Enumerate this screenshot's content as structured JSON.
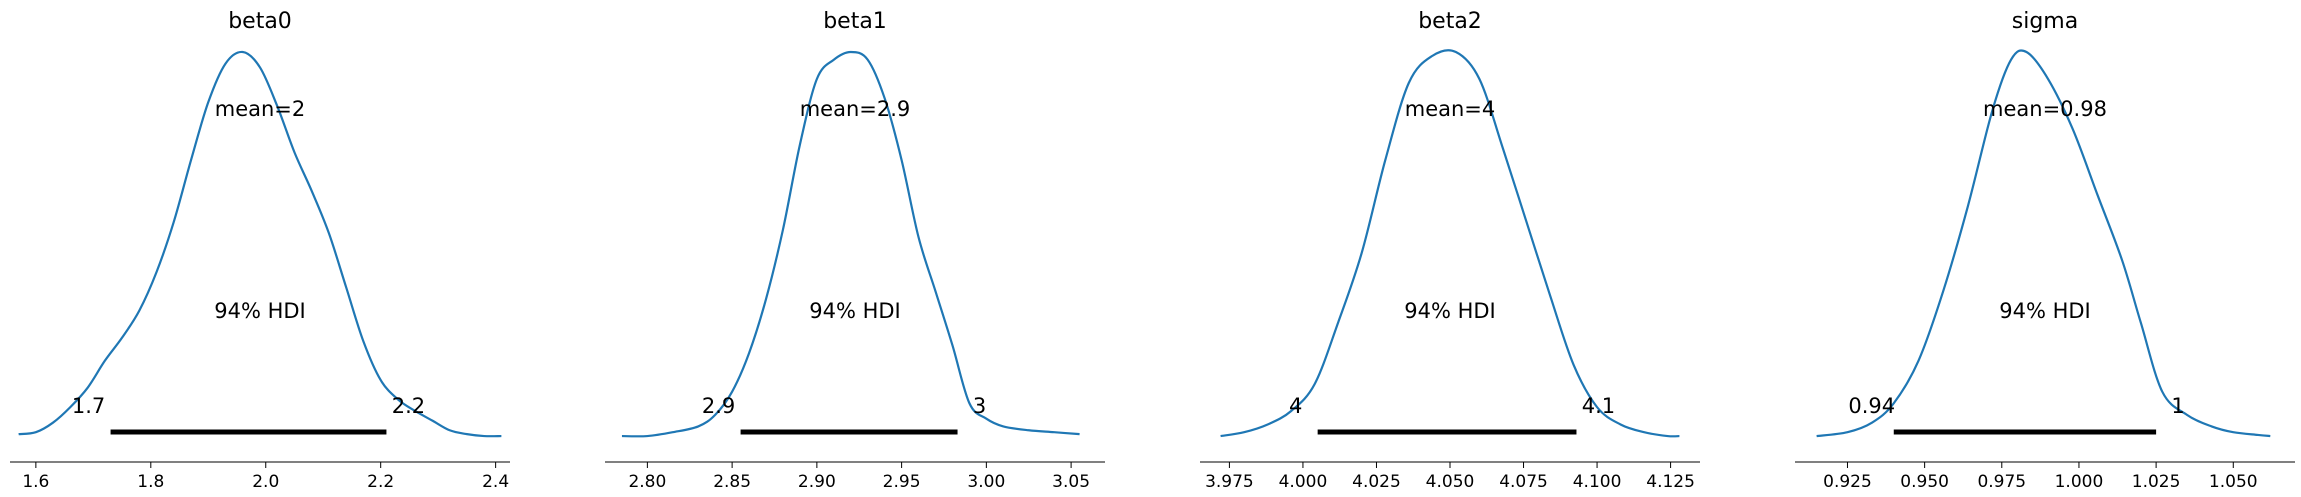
{
  "chart_data": [
    {
      "type": "line",
      "title": "beta0",
      "mean_label": "mean=2",
      "hdi_label": "94% HDI",
      "hdi": [
        1.73,
        2.21
      ],
      "hdi_labels": [
        "1.7",
        "2.2"
      ],
      "xlim": [
        1.555,
        2.425
      ],
      "xticks": [
        1.6,
        1.8,
        2.0,
        2.2,
        2.4
      ],
      "xtick_labels": [
        "1.6",
        "1.8",
        "2.0",
        "2.2",
        "2.4"
      ],
      "color": "#1f77b4",
      "x": [
        1.57,
        1.6,
        1.63,
        1.66,
        1.69,
        1.72,
        1.75,
        1.78,
        1.81,
        1.84,
        1.87,
        1.9,
        1.93,
        1.96,
        1.99,
        2.02,
        2.05,
        2.08,
        2.11,
        2.14,
        2.17,
        2.2,
        2.23,
        2.26,
        2.29,
        2.32,
        2.35,
        2.38,
        2.41
      ],
      "y": [
        0.01,
        0.015,
        0.04,
        0.08,
        0.13,
        0.2,
        0.26,
        0.33,
        0.43,
        0.56,
        0.72,
        0.87,
        0.97,
        1.0,
        0.96,
        0.86,
        0.74,
        0.64,
        0.53,
        0.39,
        0.25,
        0.15,
        0.1,
        0.07,
        0.045,
        0.02,
        0.01,
        0.005,
        0.005
      ]
    },
    {
      "type": "line",
      "title": "beta1",
      "mean_label": "mean=2.9",
      "hdi_label": "94% HDI",
      "hdi": [
        2.855,
        2.983
      ],
      "hdi_labels": [
        "2.9",
        "3"
      ],
      "xlim": [
        2.775,
        3.07
      ],
      "xticks": [
        2.8,
        2.85,
        2.9,
        2.95,
        3.0,
        3.05
      ],
      "xtick_labels": [
        "2.80",
        "2.85",
        "2.90",
        "2.95",
        "3.00",
        "3.05"
      ],
      "color": "#1f77b4",
      "x": [
        2.785,
        2.8,
        2.815,
        2.83,
        2.84,
        2.85,
        2.86,
        2.87,
        2.88,
        2.89,
        2.9,
        2.91,
        2.92,
        2.93,
        2.94,
        2.95,
        2.96,
        2.97,
        2.98,
        2.99,
        3.0,
        3.01,
        3.025,
        3.04,
        3.055
      ],
      "y": [
        0.005,
        0.005,
        0.015,
        0.03,
        0.06,
        0.12,
        0.22,
        0.36,
        0.54,
        0.76,
        0.93,
        0.98,
        1.0,
        0.98,
        0.88,
        0.72,
        0.52,
        0.38,
        0.24,
        0.09,
        0.05,
        0.03,
        0.02,
        0.015,
        0.01
      ]
    },
    {
      "type": "line",
      "title": "beta2",
      "mean_label": "mean=4",
      "hdi_label": "94% HDI",
      "hdi": [
        4.005,
        4.093
      ],
      "hdi_labels": [
        "4",
        "4.1"
      ],
      "xlim": [
        3.965,
        4.135
      ],
      "xticks": [
        3.975,
        4.0,
        4.025,
        4.05,
        4.075,
        4.1,
        4.125
      ],
      "xtick_labels": [
        "3.975",
        "4.000",
        "4.025",
        "4.050",
        "4.075",
        "4.100",
        "4.125"
      ],
      "color": "#1f77b4",
      "x": [
        3.972,
        3.98,
        3.988,
        3.996,
        4.004,
        4.012,
        4.02,
        4.028,
        4.036,
        4.044,
        4.052,
        4.06,
        4.068,
        4.076,
        4.084,
        4.092,
        4.1,
        4.108,
        4.116,
        4.124,
        4.128
      ],
      "y": [
        0.005,
        0.015,
        0.035,
        0.07,
        0.14,
        0.3,
        0.48,
        0.72,
        0.92,
        0.99,
        1.0,
        0.93,
        0.75,
        0.56,
        0.37,
        0.19,
        0.08,
        0.035,
        0.015,
        0.005,
        0.005
      ]
    },
    {
      "type": "line",
      "title": "sigma",
      "mean_label": "mean=0.98",
      "hdi_label": "94% HDI",
      "hdi": [
        0.94,
        1.025
      ],
      "hdi_labels": [
        "0.94",
        "1"
      ],
      "xlim": [
        0.908,
        1.07
      ],
      "xticks": [
        0.925,
        0.95,
        0.975,
        1.0,
        1.025,
        1.05
      ],
      "xtick_labels": [
        "0.925",
        "0.950",
        "0.975",
        "1.000",
        "1.025",
        "1.050"
      ],
      "color": "#1f77b4",
      "x": [
        0.915,
        0.925,
        0.933,
        0.94,
        0.948,
        0.956,
        0.964,
        0.972,
        0.978,
        0.983,
        0.99,
        0.998,
        1.006,
        1.014,
        1.02,
        1.027,
        1.035,
        1.043,
        1.05,
        1.058,
        1.062
      ],
      "y": [
        0.005,
        0.015,
        0.04,
        0.09,
        0.2,
        0.38,
        0.6,
        0.85,
        0.98,
        1.0,
        0.93,
        0.8,
        0.63,
        0.46,
        0.3,
        0.12,
        0.06,
        0.03,
        0.015,
        0.008,
        0.005
      ]
    }
  ]
}
